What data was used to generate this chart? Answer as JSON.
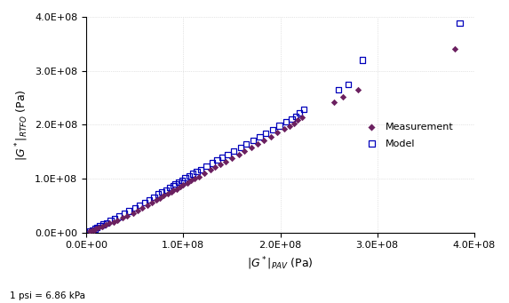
{
  "measurement_x": [
    4000000.0,
    6000000.0,
    8000000.0,
    10000000.0,
    13000000.0,
    16000000.0,
    20000000.0,
    24000000.0,
    28000000.0,
    32000000.0,
    37000000.0,
    42000000.0,
    48000000.0,
    53000000.0,
    58000000.0,
    63000000.0,
    68000000.0,
    72000000.0,
    76000000.0,
    80000000.0,
    84000000.0,
    88000000.0,
    90000000.0,
    93000000.0,
    97000000.0,
    100000000.0,
    104000000.0,
    108000000.0,
    112000000.0,
    116000000.0,
    122000000.0,
    128000000.0,
    133000000.0,
    138000000.0,
    144000000.0,
    150000000.0,
    157000000.0,
    163000000.0,
    170000000.0,
    177000000.0,
    183000000.0,
    190000000.0,
    197000000.0,
    204000000.0,
    210000000.0,
    214000000.0,
    218000000.0,
    222000000.0,
    255000000.0,
    265000000.0,
    280000000.0,
    380000000.0
  ],
  "measurement_y": [
    2000000.0,
    4000000.0,
    5000000.0,
    7000000.0,
    9000000.0,
    11000000.0,
    14000000.0,
    17000000.0,
    20000000.0,
    23000000.0,
    27000000.0,
    31000000.0,
    36000000.0,
    40000000.0,
    45000000.0,
    50000000.0,
    55000000.0,
    60000000.0,
    64000000.0,
    68000000.0,
    72000000.0,
    76000000.0,
    78000000.0,
    81000000.0,
    85000000.0,
    88000000.0,
    92000000.0,
    96000000.0,
    100000000.0,
    104000000.0,
    110000000.0,
    116000000.0,
    121000000.0,
    126000000.0,
    132000000.0,
    138000000.0,
    145000000.0,
    151000000.0,
    158000000.0,
    165000000.0,
    171000000.0,
    178000000.0,
    185000000.0,
    192000000.0,
    198000000.0,
    203000000.0,
    208000000.0,
    213000000.0,
    242000000.0,
    252000000.0,
    265000000.0,
    340000000.0
  ],
  "model_x": [
    4000000.0,
    6000000.0,
    9000000.0,
    11000000.0,
    14000000.0,
    17000000.0,
    21000000.0,
    25000000.0,
    29000000.0,
    34000000.0,
    39000000.0,
    44000000.0,
    50000000.0,
    55000000.0,
    60000000.0,
    65000000.0,
    70000000.0,
    74000000.0,
    78000000.0,
    82000000.0,
    86000000.0,
    90000000.0,
    92000000.0,
    95000000.0,
    99000000.0,
    102000000.0,
    106000000.0,
    110000000.0,
    114000000.0,
    118000000.0,
    124000000.0,
    130000000.0,
    135000000.0,
    140000000.0,
    146000000.0,
    152000000.0,
    159000000.0,
    165000000.0,
    172000000.0,
    179000000.0,
    185000000.0,
    192000000.0,
    199000000.0,
    206000000.0,
    212000000.0,
    216000000.0,
    220000000.0,
    224000000.0,
    260000000.0,
    270000000.0,
    285000000.0,
    385000000.0
  ],
  "model_y": [
    3000000.0,
    5000000.0,
    7000000.0,
    9000000.0,
    12000000.0,
    15000000.0,
    18000000.0,
    22000000.0,
    26000000.0,
    30000000.0,
    35000000.0,
    40000000.0,
    46000000.0,
    51000000.0,
    56000000.0,
    61000000.0,
    66000000.0,
    71000000.0,
    75000000.0,
    79000000.0,
    83000000.0,
    87000000.0,
    90000000.0,
    93000000.0,
    97000000.0,
    101000000.0,
    105000000.0,
    109000000.0,
    113000000.0,
    117000000.0,
    123000000.0,
    129000000.0,
    134000000.0,
    139000000.0,
    145000000.0,
    151000000.0,
    158000000.0,
    164000000.0,
    171000000.0,
    178000000.0,
    184000000.0,
    191000000.0,
    198000000.0,
    205000000.0,
    211000000.0,
    216000000.0,
    222000000.0,
    228000000.0,
    265000000.0,
    275000000.0,
    320000000.0,
    388000000.0
  ],
  "xlim": [
    0,
    400000000.0
  ],
  "ylim": [
    0,
    400000000.0
  ],
  "measurement_color": "#6b2060",
  "model_edge_color": "#0000bb",
  "footnote": "1 psi = 6.86 kPa"
}
